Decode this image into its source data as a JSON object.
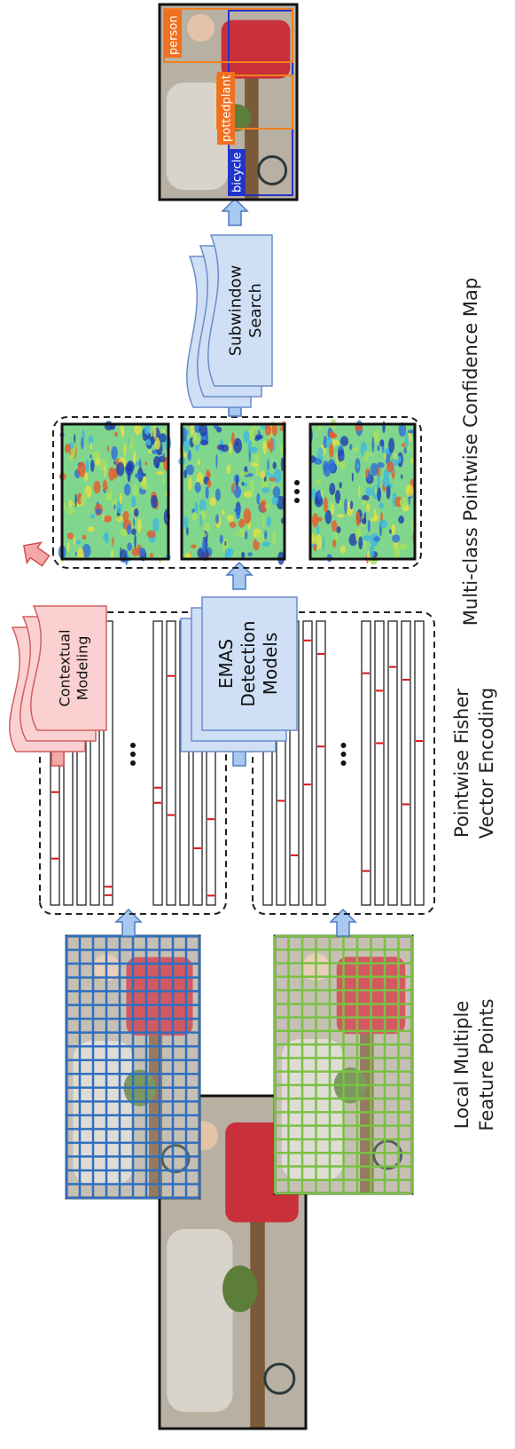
{
  "labels": {
    "feature_points": [
      "Local Multiple",
      "Feature Points"
    ],
    "fisher": [
      "Pointwise Fisher",
      "Vector Encoding"
    ],
    "confidence_map": "Multi-class Pointwise Confidence Map"
  },
  "boxes": {
    "contextual": [
      "Contextual",
      "Modeling"
    ],
    "emas": [
      "EMAS",
      "Detection",
      "Models"
    ],
    "subwindow": [
      "Subwindow",
      "Search"
    ]
  },
  "detections": [
    "person",
    "pottedplant",
    "bicycle"
  ]
}
